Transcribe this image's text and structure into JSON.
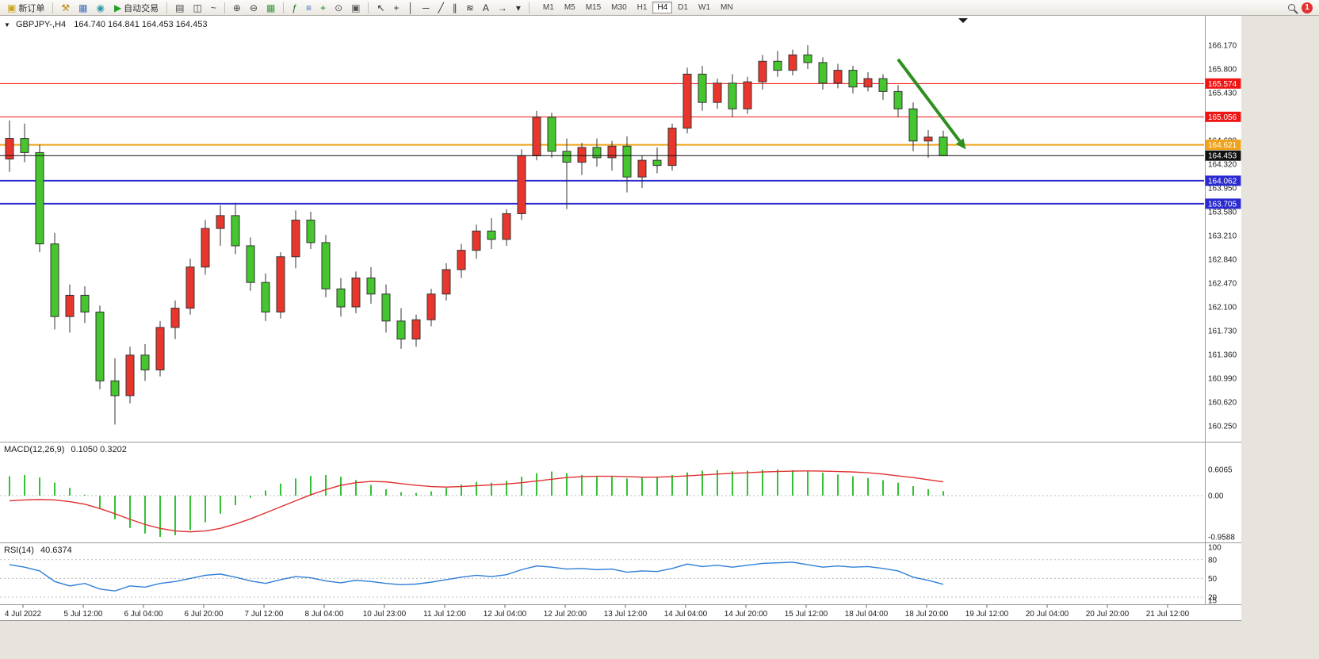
{
  "toolbar": {
    "new_order_label": "新订单",
    "auto_trading_label": "自动交易",
    "notification_count": "1",
    "icon_buttons_left": [
      {
        "name": "chart-tools-icon",
        "glyph": "⚒",
        "color": "#b8860b"
      },
      {
        "name": "profiles-icon",
        "glyph": "▦",
        "color": "#3a6fbf"
      },
      {
        "name": "market-watch-icon",
        "glyph": "◉",
        "color": "#2e9aa8"
      }
    ],
    "chart_type_icons": [
      {
        "name": "bar-chart-icon",
        "glyph": "▤",
        "color": "#444"
      },
      {
        "name": "candlestick-chart-icon",
        "glyph": "◫",
        "color": "#444"
      },
      {
        "name": "line-chart-icon",
        "glyph": "~",
        "color": "#444"
      }
    ],
    "zoom_icons": [
      {
        "name": "zoom-in-icon",
        "glyph": "⊕",
        "color": "#444"
      },
      {
        "name": "zoom-out-icon",
        "glyph": "⊖",
        "color": "#444"
      },
      {
        "name": "tile-windows-icon",
        "glyph": "▦",
        "color": "#3a9a3a"
      }
    ],
    "tool_icons": [
      {
        "name": "indicators-icon",
        "glyph": "ƒ",
        "color": "#1a7a1a"
      },
      {
        "name": "indicator-window-icon",
        "glyph": "≡",
        "color": "#3a6fbf"
      },
      {
        "name": "add-indicator-icon",
        "glyph": "+",
        "color": "#1a7a1a"
      },
      {
        "name": "period-icon",
        "glyph": "⊙",
        "color": "#555"
      },
      {
        "name": "template-icon",
        "glyph": "▣",
        "color": "#555"
      }
    ],
    "draw_icons": [
      {
        "name": "cursor-icon",
        "glyph": "↖",
        "color": "#333"
      },
      {
        "name": "crosshair-icon",
        "glyph": "+",
        "color": "#333"
      },
      {
        "name": "vertical-line-icon",
        "glyph": "│",
        "color": "#333"
      },
      {
        "name": "horizontal-line-icon",
        "glyph": "─",
        "color": "#333"
      },
      {
        "name": "trendline-icon",
        "glyph": "╱",
        "color": "#333"
      },
      {
        "name": "channel-icon",
        "glyph": "∥",
        "color": "#333"
      },
      {
        "name": "fibonacci-icon",
        "glyph": "≋",
        "color": "#333"
      },
      {
        "name": "text-icon",
        "glyph": "A",
        "color": "#333"
      },
      {
        "name": "arrow-tool-icon",
        "glyph": "→",
        "color": "#333"
      },
      {
        "name": "shapes-dropdown-icon",
        "glyph": "▾",
        "color": "#333"
      }
    ],
    "timeframes": [
      "M1",
      "M5",
      "M15",
      "M30",
      "H1",
      "H4",
      "D1",
      "W1",
      "MN"
    ],
    "active_timeframe": "H4"
  },
  "chart": {
    "title": "GBPJPY-,H4",
    "ohlc": "164.740 164.841 164.453 164.453"
  },
  "chart_data": {
    "type": "candlestick",
    "symbol": "GBPJPY-",
    "timeframe": "H4",
    "current_candle": {
      "open": 164.74,
      "high": 164.841,
      "low": 164.453,
      "close": 164.453
    },
    "price_axis_labels": [
      "166.170",
      "165.800",
      "165.430",
      "165.060",
      "164.690",
      "164.320",
      "163.950",
      "163.580",
      "163.210",
      "162.840",
      "162.470",
      "162.100",
      "161.730",
      "161.360",
      "160.990",
      "160.620",
      "160.250"
    ],
    "time_labels": [
      "4 Jul 2022",
      "5 Jul 12:00",
      "6 Jul 04:00",
      "6 Jul 20:00",
      "7 Jul 12:00",
      "8 Jul 04:00",
      "10 Jul 23:00",
      "11 Jul 12:00",
      "12 Jul 04:00",
      "12 Jul 20:00",
      "13 Jul 12:00",
      "14 Jul 04:00",
      "14 Jul 20:00",
      "15 Jul 12:00",
      "18 Jul 04:00",
      "18 Jul 20:00",
      "19 Jul 12:00",
      "20 Jul 04:00",
      "20 Jul 20:00",
      "21 Jul 12:00"
    ],
    "candles": [
      [
        164.4,
        165.0,
        164.2,
        164.72
      ],
      [
        164.72,
        164.95,
        164.35,
        164.5
      ],
      [
        164.5,
        164.62,
        162.95,
        163.08
      ],
      [
        163.08,
        163.25,
        161.75,
        161.95
      ],
      [
        161.95,
        162.45,
        161.7,
        162.28
      ],
      [
        162.28,
        162.42,
        161.85,
        162.02
      ],
      [
        162.02,
        162.12,
        160.82,
        160.95
      ],
      [
        160.95,
        161.3,
        160.27,
        160.72
      ],
      [
        160.72,
        161.48,
        160.6,
        161.35
      ],
      [
        161.35,
        161.52,
        160.95,
        161.12
      ],
      [
        161.12,
        161.88,
        161.02,
        161.78
      ],
      [
        161.78,
        162.2,
        161.6,
        162.08
      ],
      [
        162.08,
        162.85,
        161.98,
        162.72
      ],
      [
        162.72,
        163.45,
        162.6,
        163.32
      ],
      [
        163.32,
        163.68,
        163.05,
        163.52
      ],
      [
        163.52,
        163.72,
        162.92,
        163.05
      ],
      [
        163.05,
        163.18,
        162.35,
        162.48
      ],
      [
        162.48,
        162.62,
        161.88,
        162.02
      ],
      [
        162.02,
        162.95,
        161.92,
        162.88
      ],
      [
        162.88,
        163.6,
        162.7,
        163.45
      ],
      [
        163.45,
        163.58,
        163.0,
        163.1
      ],
      [
        163.1,
        163.22,
        162.25,
        162.38
      ],
      [
        162.38,
        162.55,
        161.95,
        162.1
      ],
      [
        162.1,
        162.65,
        162.0,
        162.55
      ],
      [
        162.55,
        162.72,
        162.15,
        162.3
      ],
      [
        162.3,
        162.45,
        161.7,
        161.88
      ],
      [
        161.88,
        162.08,
        161.45,
        161.6
      ],
      [
        161.6,
        161.98,
        161.48,
        161.9
      ],
      [
        161.9,
        162.38,
        161.8,
        162.3
      ],
      [
        162.3,
        162.78,
        162.2,
        162.68
      ],
      [
        162.68,
        163.08,
        162.55,
        162.98
      ],
      [
        162.98,
        163.38,
        162.85,
        163.28
      ],
      [
        163.28,
        163.48,
        163.0,
        163.15
      ],
      [
        163.15,
        163.62,
        163.05,
        163.55
      ],
      [
        163.55,
        164.55,
        163.45,
        164.45
      ],
      [
        164.45,
        165.15,
        164.38,
        165.05
      ],
      [
        165.05,
        165.12,
        164.42,
        164.52
      ],
      [
        164.52,
        164.72,
        163.62,
        164.35
      ],
      [
        164.35,
        164.65,
        164.15,
        164.58
      ],
      [
        164.58,
        164.72,
        164.28,
        164.42
      ],
      [
        164.42,
        164.68,
        164.22,
        164.6
      ],
      [
        164.6,
        164.75,
        163.88,
        164.12
      ],
      [
        164.12,
        164.45,
        163.95,
        164.38
      ],
      [
        164.38,
        164.58,
        164.18,
        164.3
      ],
      [
        164.3,
        164.95,
        164.22,
        164.88
      ],
      [
        164.88,
        165.82,
        164.8,
        165.72
      ],
      [
        165.72,
        165.85,
        165.15,
        165.28
      ],
      [
        165.28,
        165.65,
        165.18,
        165.58
      ],
      [
        165.58,
        165.72,
        165.05,
        165.18
      ],
      [
        165.18,
        165.68,
        165.1,
        165.6
      ],
      [
        165.6,
        166.02,
        165.48,
        165.92
      ],
      [
        165.92,
        166.08,
        165.68,
        165.78
      ],
      [
        165.78,
        166.1,
        165.7,
        166.02
      ],
      [
        166.02,
        166.17,
        165.8,
        165.9
      ],
      [
        165.9,
        165.98,
        165.48,
        165.58
      ],
      [
        165.58,
        165.88,
        165.5,
        165.78
      ],
      [
        165.78,
        165.85,
        165.42,
        165.52
      ],
      [
        165.52,
        165.75,
        165.45,
        165.65
      ],
      [
        165.65,
        165.72,
        165.32,
        165.45
      ],
      [
        165.45,
        165.55,
        165.05,
        165.18
      ],
      [
        165.18,
        165.28,
        164.52,
        164.68
      ],
      [
        164.68,
        164.85,
        164.42,
        164.74
      ],
      [
        164.74,
        164.841,
        164.453,
        164.453
      ]
    ],
    "hlines": [
      {
        "price": 165.574,
        "label": "165.574",
        "color": "#f01515",
        "width": 1
      },
      {
        "price": 165.056,
        "label": "165.056",
        "color": "#f01515",
        "width": 1
      },
      {
        "price": 164.621,
        "label": "164.621",
        "color": "#efa21a",
        "width": 2
      },
      {
        "price": 164.062,
        "label": "164.062",
        "color": "#2a2ad0",
        "width": 2
      },
      {
        "price": 163.705,
        "label": "163.705",
        "color": "#2a2ad0",
        "width": 2
      }
    ],
    "current_price": {
      "value": 164.453,
      "label": "164.453",
      "color": "#101010"
    },
    "arrow": {
      "from": {
        "candle": 59,
        "price": 165.95
      },
      "to": {
        "candle": 63.5,
        "price": 164.55
      },
      "color": "#2e8f1e"
    },
    "macd": {
      "label": "MACD(12,26,9)",
      "values_text": "0.1050 0.3202",
      "axis_labels": [
        {
          "label": "0.6065",
          "value": 0.6065
        },
        {
          "label": "0.00",
          "value": 0
        },
        {
          "label": "-0.9588",
          "value": -0.9588
        }
      ],
      "histogram": [
        0.45,
        0.48,
        0.42,
        0.3,
        0.18,
        0.02,
        -0.3,
        -0.55,
        -0.75,
        -0.88,
        -0.9588,
        -0.92,
        -0.8,
        -0.62,
        -0.42,
        -0.22,
        -0.05,
        0.12,
        0.28,
        0.4,
        0.46,
        0.48,
        0.44,
        0.36,
        0.25,
        0.15,
        0.08,
        0.06,
        0.1,
        0.18,
        0.26,
        0.32,
        0.3,
        0.34,
        0.44,
        0.52,
        0.56,
        0.52,
        0.48,
        0.46,
        0.44,
        0.4,
        0.42,
        0.44,
        0.48,
        0.54,
        0.58,
        0.59,
        0.57,
        0.58,
        0.6,
        0.6065,
        0.59,
        0.57,
        0.53,
        0.49,
        0.45,
        0.41,
        0.36,
        0.3,
        0.22,
        0.15,
        0.105
      ],
      "signal": [
        -0.12,
        -0.1,
        -0.09,
        -0.1,
        -0.14,
        -0.2,
        -0.3,
        -0.42,
        -0.55,
        -0.67,
        -0.76,
        -0.82,
        -0.84,
        -0.82,
        -0.76,
        -0.66,
        -0.54,
        -0.4,
        -0.26,
        -0.12,
        0.02,
        0.14,
        0.24,
        0.3,
        0.33,
        0.32,
        0.28,
        0.24,
        0.21,
        0.2,
        0.21,
        0.23,
        0.25,
        0.27,
        0.3,
        0.34,
        0.38,
        0.42,
        0.44,
        0.45,
        0.45,
        0.44,
        0.43,
        0.43,
        0.44,
        0.46,
        0.48,
        0.5,
        0.52,
        0.53,
        0.55,
        0.56,
        0.57,
        0.575,
        0.57,
        0.56,
        0.55,
        0.53,
        0.5,
        0.46,
        0.42,
        0.37,
        0.3202
      ]
    },
    "rsi": {
      "label": "RSI(14)",
      "value_text": "40.6374",
      "axis_labels": [
        {
          "label": "100",
          "value": 100
        },
        {
          "label": "80",
          "value": 80
        },
        {
          "label": "50",
          "value": 50
        },
        {
          "label": "20",
          "value": 20
        },
        {
          "label": "15",
          "value": 15
        }
      ],
      "levels": [
        80,
        50,
        20
      ],
      "values": [
        72,
        68,
        62,
        45,
        38,
        42,
        33,
        30,
        38,
        36,
        42,
        45,
        50,
        55,
        57,
        52,
        46,
        42,
        48,
        53,
        51,
        46,
        43,
        47,
        45,
        42,
        40,
        41,
        44,
        48,
        52,
        55,
        53,
        56,
        64,
        70,
        68,
        65,
        66,
        64,
        65,
        60,
        62,
        61,
        66,
        73,
        69,
        71,
        68,
        71,
        74,
        75,
        76,
        72,
        68,
        70,
        68,
        69,
        66,
        62,
        52,
        47,
        40.6374
      ]
    },
    "colors": {
      "bull": "#e8362d",
      "bear": "#45c52e",
      "outline": "#333333",
      "macd_bar": "#35c135",
      "macd_signal": "#e03030",
      "rsi_line": "#2f7fd6",
      "axis_text": "#202020"
    }
  }
}
